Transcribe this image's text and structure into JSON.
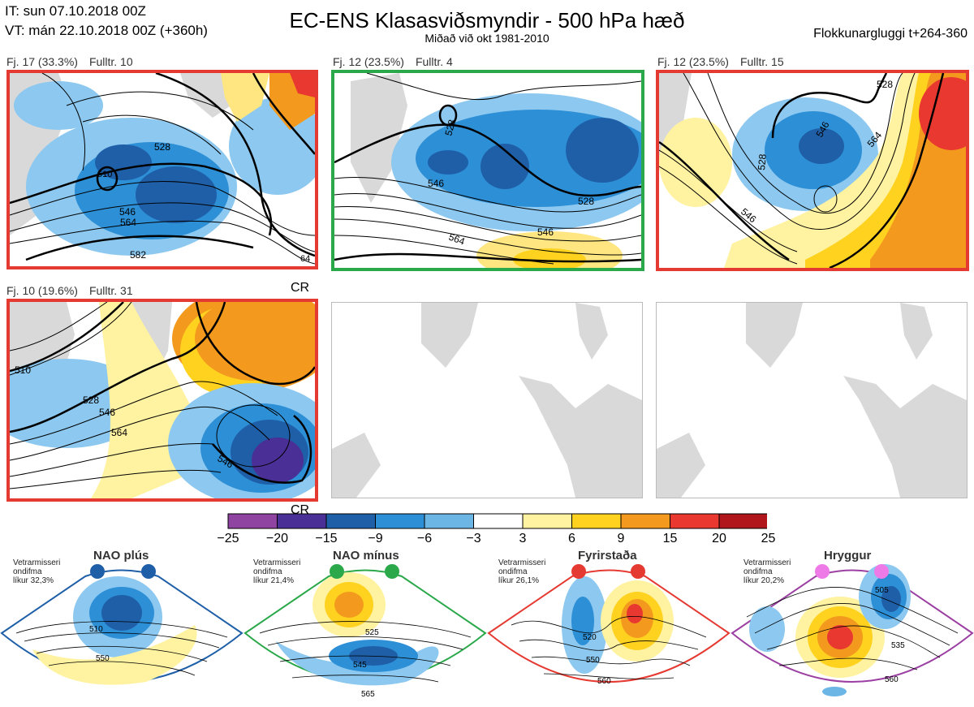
{
  "header": {
    "it_line": "IT: sun 07.10.2018 00Z",
    "vt_line": "VT: mán 22.10.2018 00Z  (+360h)",
    "title": "EC-ENS Klasasviðsmyndir - 500 hPa hæð",
    "subtitle": "Miðað við okt 1981-2010",
    "window": "Flokkunargluggi t+264-360"
  },
  "panels": [
    {
      "label": "Fj. 17 (33.3%)",
      "members": "Fulltr. 10",
      "border_color": "#e53a32",
      "contours": [
        "510",
        "528",
        "546",
        "564",
        "582",
        "64"
      ]
    },
    {
      "label": "Fj. 12 (23.5%)",
      "members": "Fulltr. 4",
      "border_color": "#2aa84a",
      "contours": [
        "528",
        "546",
        "564",
        "546",
        "528"
      ]
    },
    {
      "label": "Fj. 12 (23.5%)",
      "members": "Fulltr. 15",
      "border_color": "#e53a32",
      "contours": [
        "528",
        "546",
        "564",
        "528",
        "546"
      ]
    },
    {
      "label": "Fj. 10 (19.6%)",
      "members": "Fulltr. 31",
      "border_color": "#e53a32",
      "corner_tag": "CR",
      "contours": [
        "510",
        "528",
        "546",
        "564",
        "546"
      ]
    }
  ],
  "colorbar": {
    "ticks": [
      "−25",
      "−20",
      "−15",
      "−9",
      "−6",
      "−3",
      "3",
      "6",
      "9",
      "15",
      "20",
      "25"
    ],
    "colors": [
      "#8e44a0",
      "#4a2f96",
      "#1f5fa8",
      "#2d8fd6",
      "#6cb6e6",
      "#ffffff",
      "#fff2a0",
      "#ffd21f",
      "#f39a1e",
      "#e8382f",
      "#b0161c"
    ]
  },
  "regimes": [
    {
      "name": "NAO plús",
      "note_line1": "Vetrarmisseri",
      "note_line2": "ondifma",
      "note_line3": "líkur 32,3%",
      "color": "#1f5fa8",
      "contours": [
        "510",
        "550"
      ]
    },
    {
      "name": "NAO mínus",
      "note_line1": "Vetrarmisseri",
      "note_line2": "ondifma",
      "note_line3": "líkur 21,4%",
      "color": "#2aa84a",
      "contours": [
        "525",
        "545",
        "565"
      ]
    },
    {
      "name": "Fyrirstaða",
      "note_line1": "Vetrarmisseri",
      "note_line2": "ondifma",
      "note_line3": "líkur 26,1%",
      "color": "#e53a32",
      "contours": [
        "520",
        "550",
        "560"
      ]
    },
    {
      "name": "Hryggur",
      "note_line1": "Vetrarmisseri",
      "note_line2": "ondifma",
      "note_line3": "líkur 20,2%",
      "color": "#9b3fa2",
      "dot_color": "#ee7ae8",
      "contours": [
        "505",
        "535",
        "560"
      ]
    }
  ],
  "chart_data": {
    "type": "heatmap",
    "title": "EC-ENS Klasasviðsmyndir - 500 hPa hæð",
    "subtitle": "Miðað við okt 1981-2010",
    "colorbar_ticks": [
      -25,
      -20,
      -15,
      -9,
      -6,
      -3,
      3,
      6,
      9,
      15,
      20,
      25
    ],
    "clusters": [
      {
        "label": "Fj. 17 (33.3%)",
        "members": "Fulltr. 10",
        "percent": 33.3
      },
      {
        "label": "Fj. 12 (23.5%)",
        "members": "Fulltr. 4",
        "percent": 23.5
      },
      {
        "label": "Fj. 12 (23.5%)",
        "members": "Fulltr. 15",
        "percent": 23.5
      },
      {
        "label": "Fj. 10 (19.6%)",
        "members": "Fulltr. 31",
        "percent": 19.6
      }
    ],
    "regimes": [
      {
        "name": "NAO plús",
        "probability": 32.3
      },
      {
        "name": "NAO mínus",
        "probability": 21.4
      },
      {
        "name": "Fyrirstaða",
        "probability": 26.1
      },
      {
        "name": "Hryggur",
        "probability": 20.2
      }
    ]
  }
}
